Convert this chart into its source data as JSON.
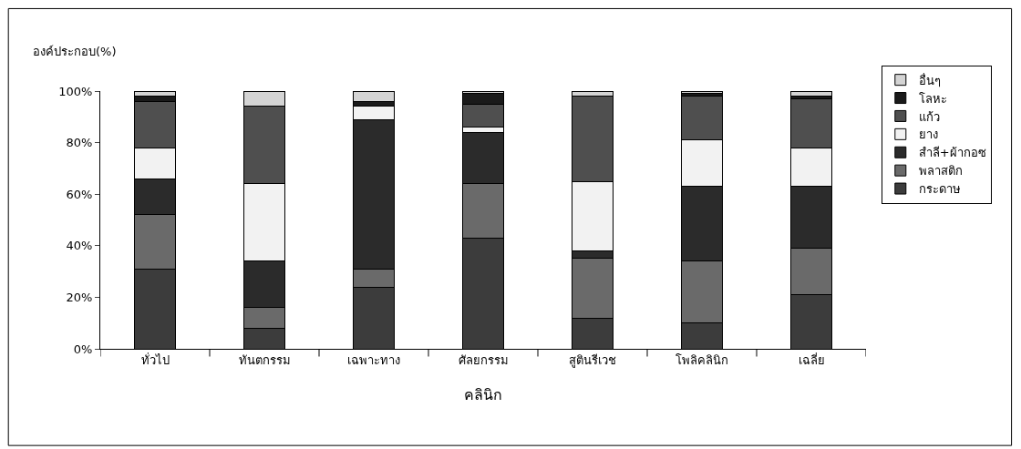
{
  "chart_data": {
    "type": "bar",
    "stacked": true,
    "ylabel": "องค์ประกอบ(%)",
    "xlabel": "คลินิก",
    "categories": [
      "ทั่วไป",
      "ทันตกรรม",
      "เฉพาะทาง",
      "ศัลยกรรม",
      "สูตินรีเวช",
      "โพลิคลินิก",
      "เฉลี่ย"
    ],
    "series": [
      {
        "name": "กระดาษ",
        "color": "#3c3c3c",
        "values": [
          31,
          8,
          24,
          43,
          12,
          10,
          21
        ]
      },
      {
        "name": "พลาสติก",
        "color": "#6a6a6a",
        "values": [
          21,
          8,
          7,
          21,
          23,
          24,
          18
        ]
      },
      {
        "name": "สำลี+ผ้ากอซ",
        "color": "#2b2b2b",
        "values": [
          14,
          18,
          58,
          20,
          3,
          29,
          24
        ]
      },
      {
        "name": "ยาง",
        "color": "#f2f2f2",
        "values": [
          12,
          30,
          5,
          2,
          27,
          18,
          15
        ]
      },
      {
        "name": "แก้ว",
        "color": "#4f4f4f",
        "values": [
          18,
          30,
          0,
          9,
          33,
          17,
          19
        ]
      },
      {
        "name": "โลหะ",
        "color": "#1a1a1a",
        "values": [
          2,
          0,
          2,
          4,
          0,
          1,
          1
        ]
      },
      {
        "name": "อื่นๆ",
        "color": "#d4d4d4",
        "values": [
          2,
          6,
          4,
          1,
          2,
          1,
          2
        ]
      }
    ],
    "ylim": [
      0,
      100
    ],
    "yticks": [
      {
        "value": 0,
        "label": "0%"
      },
      {
        "value": 20,
        "label": "20%"
      },
      {
        "value": 40,
        "label": "40%"
      },
      {
        "value": 60,
        "label": "60%"
      },
      {
        "value": 80,
        "label": "80%"
      },
      {
        "value": 100,
        "label": "100%"
      }
    ],
    "legend": "right"
  }
}
